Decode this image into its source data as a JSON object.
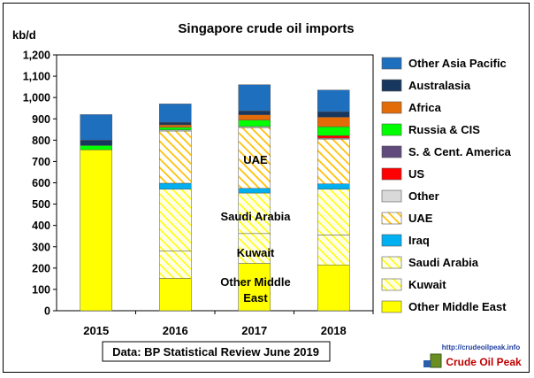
{
  "chart_data": {
    "type": "bar",
    "stacked": true,
    "title": "Singapore crude oil imports",
    "ylabel": "kb/d",
    "xlabel": "",
    "ylim": [
      0,
      1200
    ],
    "yticks": [
      0,
      100,
      200,
      300,
      400,
      500,
      600,
      700,
      800,
      900,
      1000,
      1100,
      1200
    ],
    "ytick_labels": [
      "0",
      "100",
      "200",
      "300",
      "400",
      "500",
      "600",
      "700",
      "800",
      "900",
      "1,000",
      "1,100",
      "1,200"
    ],
    "categories": [
      "2015",
      "2016",
      "2017",
      "2018"
    ],
    "grid": false,
    "legend_position": "right",
    "series": [
      {
        "name": "Other Middle East",
        "color": "#ffff00",
        "pattern": "solid",
        "values": [
          755,
          152,
          222,
          215
        ]
      },
      {
        "name": "Kuwait",
        "color": "#ffff00",
        "pattern": "hatch-light",
        "values": [
          0,
          128,
          140,
          140
        ]
      },
      {
        "name": "Saudi Arabia",
        "color": "#ffff00",
        "pattern": "hatch-light",
        "values": [
          0,
          290,
          190,
          215
        ]
      },
      {
        "name": "Iraq",
        "color": "#00b0f0",
        "pattern": "solid",
        "values": [
          0,
          28,
          22,
          25
        ]
      },
      {
        "name": "UAE",
        "color": "#ffc000",
        "pattern": "hatch-heavy",
        "values": [
          0,
          245,
          285,
          210
        ]
      },
      {
        "name": "Other",
        "color": "#d9d9d9",
        "pattern": "solid",
        "values": [
          0,
          5,
          5,
          4
        ]
      },
      {
        "name": "US",
        "color": "#ff0000",
        "pattern": "solid",
        "values": [
          0,
          0,
          0,
          12
        ]
      },
      {
        "name": "S. & Cent. America",
        "color": "#604a7b",
        "pattern": "solid",
        "values": [
          0,
          0,
          0,
          0
        ]
      },
      {
        "name": "Russia & CIS",
        "color": "#00ff00",
        "pattern": "solid",
        "values": [
          20,
          12,
          30,
          42
        ]
      },
      {
        "name": "Africa",
        "color": "#e36c09",
        "pattern": "solid",
        "values": [
          0,
          12,
          25,
          45
        ]
      },
      {
        "name": "Australasia",
        "color": "#17375e",
        "pattern": "solid",
        "values": [
          25,
          12,
          18,
          25
        ]
      },
      {
        "name": "Other Asia Pacific",
        "color": "#1f6fbf",
        "pattern": "solid",
        "values": [
          120,
          86,
          123,
          102
        ]
      }
    ],
    "annotations": {
      "uae_label": "UAE",
      "saudi_label": "Saudi Arabia",
      "kuwait_label": "Kuwait",
      "other_me_label_line1": "Other Middle",
      "other_me_label_line2": "East"
    },
    "source": "Data: BP Statistical Review June 2019"
  },
  "logo": {
    "url_text": "http://crudeoilpeak.info",
    "name": "Crude Oil Peak"
  }
}
